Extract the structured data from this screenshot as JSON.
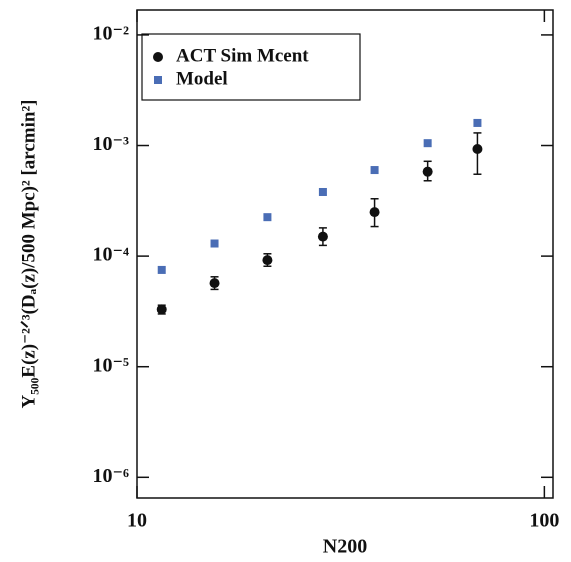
{
  "chart_data": {
    "type": "scatter",
    "xlabel": "N200",
    "ylabel": "Y₅₀₀E(z)⁻²ᐟ³(Dₐ(z)/500 Mpc)² [arcmin²]",
    "xscale": "log",
    "yscale": "log",
    "xlim": [
      10,
      105
    ],
    "ylim": [
      6.5e-07,
      0.0168
    ],
    "xticks": [
      10,
      100
    ],
    "yticks": [
      {
        "value": 1e-06,
        "label": "10⁻⁶"
      },
      {
        "value": 1e-05,
        "label": "10⁻⁵"
      },
      {
        "value": 0.0001,
        "label": "10⁻⁴"
      },
      {
        "value": 0.001,
        "label": "10⁻³"
      },
      {
        "value": 0.01,
        "label": "10⁻²"
      }
    ],
    "legend": "upper left",
    "x": [
      11.5,
      15.5,
      20.9,
      28.6,
      38.3,
      51.7,
      68.5
    ],
    "series": [
      {
        "name": "ACT Sim Mcent",
        "color": "#111111",
        "marker": "circle",
        "values": [
          3.3e-05,
          5.7e-05,
          9.2e-05,
          0.00015,
          0.00025,
          0.00058,
          0.00093
        ],
        "lower": [
          3e-05,
          5e-05,
          8.1e-05,
          0.000125,
          0.000185,
          0.00048,
          0.00055
        ],
        "upper": [
          3.6e-05,
          6.5e-05,
          0.000105,
          0.00018,
          0.00033,
          0.00072,
          0.0013
        ]
      },
      {
        "name": "Model",
        "color": "#4a6db5",
        "marker": "square",
        "values": [
          7.5e-05,
          0.00013,
          0.000225,
          0.00038,
          0.0006,
          0.00105,
          0.0016
        ]
      }
    ]
  }
}
